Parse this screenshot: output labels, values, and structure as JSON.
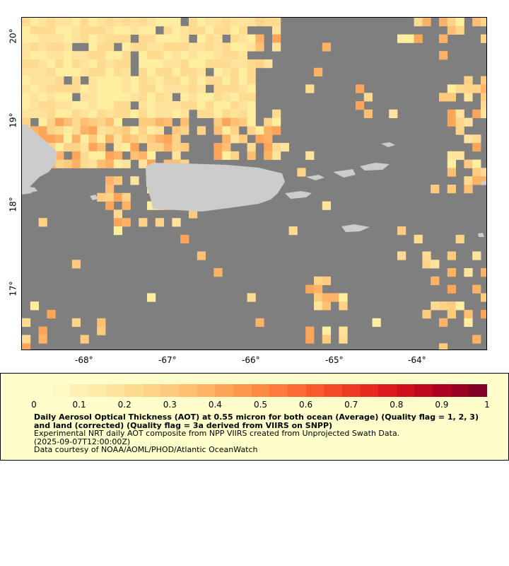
{
  "map": {
    "lon_labels": [
      "-68°",
      "-67°",
      "-66°",
      "-65°",
      "-64°"
    ],
    "lat_labels": [
      "20°",
      "19°",
      "18°",
      "17°"
    ],
    "colors": {
      "ocean_nodata": "#7f7f7f",
      "land": "#cccccc"
    }
  },
  "colorbar": {
    "min": 0,
    "max": 1,
    "tick_labels": [
      "0",
      "0.1",
      "0.2",
      "0.3",
      "0.4",
      "0.5",
      "0.6",
      "0.7",
      "0.8",
      "0.9",
      "1"
    ],
    "colors": [
      "#ffffcc",
      "#fff8c0",
      "#fff1b4",
      "#ffeaa8",
      "#ffe39c",
      "#fedb91",
      "#fed387",
      "#fecb7e",
      "#febf72",
      "#feb266",
      "#fea55a",
      "#fd984f",
      "#fd8a44",
      "#fc7a3c",
      "#fb6934",
      "#f8592d",
      "#f44a27",
      "#ee3a22",
      "#e62a1e",
      "#dc1c1d",
      "#cf111f",
      "#c00722",
      "#ae0223",
      "#990024",
      "#800026"
    ]
  },
  "legend": {
    "title": "Daily Aerosol Optical Thickness (AOT) at 0.55 micron for both ocean (Average) (Quality flag = 1, 2, 3) and land (corrected) (Quality flag = 3a derived from VIIRS on SNPP)",
    "line1": "Experimental NRT daily AOT composite from NPP VIIRS created from Unprojected Swath Data.",
    "line2": "(2025-09-07T12:00:00Z)",
    "line3": "Data courtesy of NOAA/AOML/PHOD/Atlantic OceanWatch"
  }
}
